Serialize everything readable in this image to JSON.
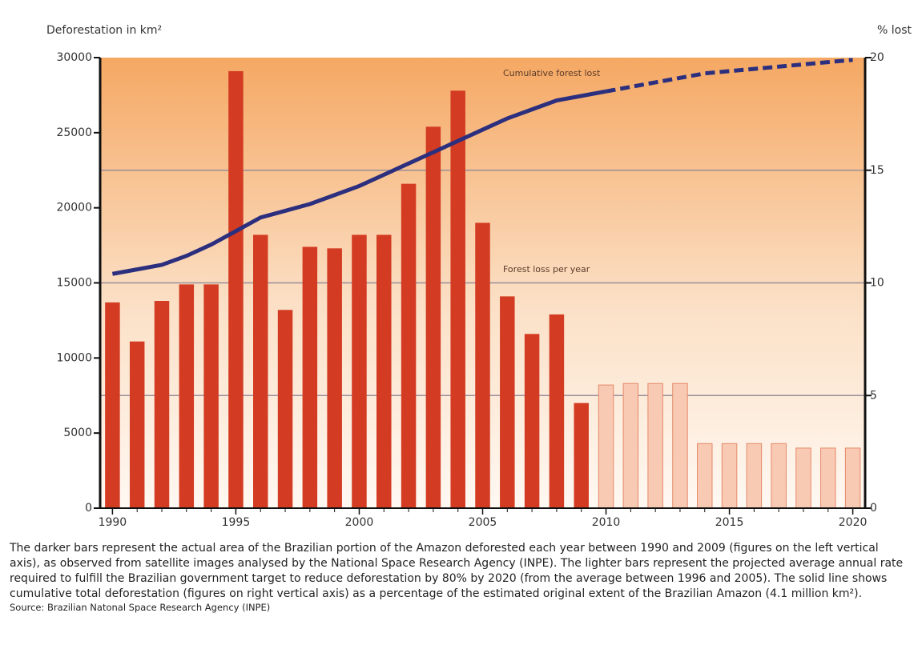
{
  "chart_data": {
    "type": "bar",
    "ylabel": "Deforestation in km²",
    "y2label": "% lost",
    "x": [
      1990,
      1991,
      1992,
      1993,
      1994,
      1995,
      1996,
      1997,
      1998,
      1999,
      2000,
      2001,
      2002,
      2003,
      2004,
      2005,
      2006,
      2007,
      2008,
      2009,
      2010,
      2011,
      2012,
      2013,
      2014,
      2015,
      2016,
      2017,
      2018,
      2019,
      2020
    ],
    "xlim": [
      1989.5,
      2020.5
    ],
    "xticks": [
      1990,
      1995,
      2000,
      2005,
      2010,
      2015,
      2020
    ],
    "ylim": [
      0,
      30000
    ],
    "yticks": [
      0,
      5000,
      10000,
      15000,
      20000,
      25000,
      30000
    ],
    "y2lim": [
      0,
      20
    ],
    "y2ticks": [
      0,
      5,
      10,
      15,
      20
    ],
    "grid": true,
    "series": [
      {
        "name": "Forest loss per year",
        "color": "#d33b22",
        "values": [
          13700,
          11100,
          13800,
          14900,
          14900,
          29100,
          18200,
          13200,
          17400,
          17300,
          18200,
          18200,
          21600,
          25400,
          27800,
          19000,
          14100,
          11600,
          12900,
          7000,
          null,
          null,
          null,
          null,
          null,
          null,
          null,
          null,
          null,
          null,
          null
        ]
      },
      {
        "color": "#f8c9b3",
        "values": [
          null,
          null,
          null,
          null,
          null,
          null,
          null,
          null,
          null,
          null,
          null,
          null,
          null,
          null,
          null,
          null,
          null,
          null,
          null,
          null,
          8200,
          8300,
          8300,
          8300,
          4300,
          4300,
          4300,
          4300,
          4000,
          4000,
          4000
        ]
      },
      {
        "name": "Cumulative forest lost",
        "type": "line",
        "axis": "y2",
        "color": "#2c2f7e",
        "values": [
          10.4,
          10.6,
          10.8,
          11.2,
          11.7,
          12.3,
          12.9,
          13.2,
          13.5,
          13.9,
          14.3,
          14.8,
          15.3,
          15.8,
          16.3,
          16.8,
          17.3,
          17.7,
          18.1,
          18.3,
          18.5,
          null,
          null,
          null,
          null,
          null,
          null,
          null,
          null,
          null,
          null
        ]
      },
      {
        "type": "line",
        "axis": "y2",
        "color": "#2c2f7e",
        "dashed": true,
        "values": [
          null,
          null,
          null,
          null,
          null,
          null,
          null,
          null,
          null,
          null,
          null,
          null,
          null,
          null,
          null,
          null,
          null,
          null,
          null,
          null,
          18.5,
          18.7,
          18.9,
          19.1,
          19.3,
          19.4,
          19.5,
          19.6,
          19.7,
          19.8,
          19.9
        ]
      }
    ]
  },
  "caption": "The darker bars represent the actual area of the Brazilian portion of the Amazon deforested each year between 1990 and 2009 (figures on the left vertical axis), as observed from satellite images analysed by the National Space Research Agency (INPE). The lighter bars represent the projected average annual rate required to fulfill the Brazilian government target to reduce deforestation by 80% by 2020 (from the average between 1996 and 2005). The solid line shows cumulative total deforestation (figures on right vertical axis) as a percentage of the estimated original extent of the Brazilian Amazon (4.1 million km²).",
  "source": "Source: Brazilian Natonal Space Research Agency (INPE)"
}
